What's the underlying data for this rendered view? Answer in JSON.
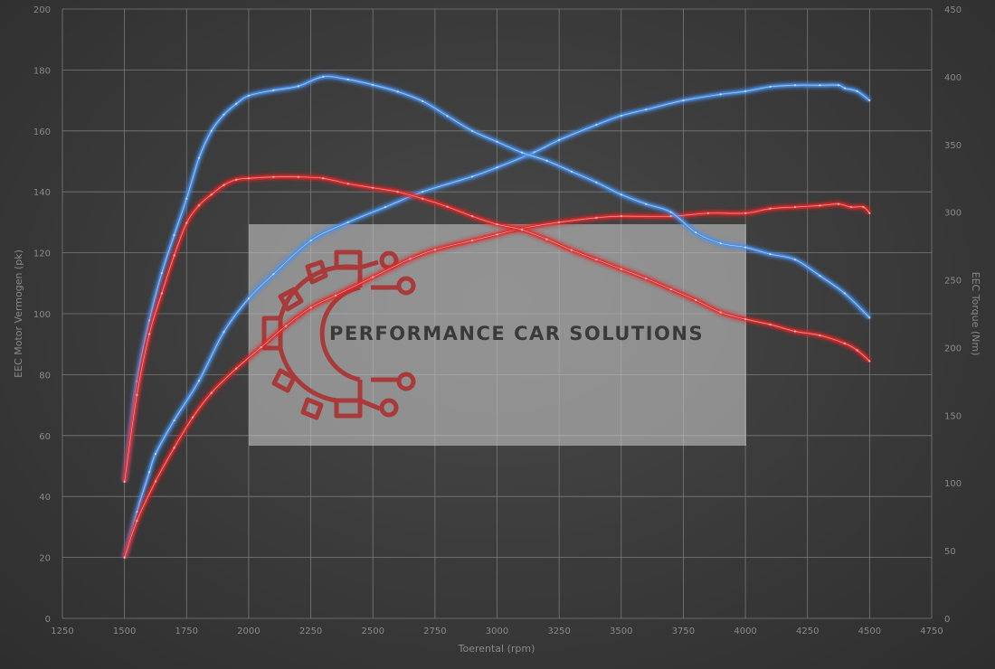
{
  "chart_data": {
    "type": "line",
    "x_axis": {
      "label": "Toerental (rpm)",
      "range": [
        1250,
        4750
      ],
      "ticks": [
        1250,
        1500,
        1750,
        2000,
        2250,
        2500,
        2750,
        3000,
        3250,
        3500,
        3750,
        4000,
        4250,
        4500,
        4750
      ]
    },
    "y_left": {
      "label": "EEC Motor Vermogen (pk)",
      "range": [
        0,
        200
      ],
      "ticks": [
        0,
        20,
        40,
        60,
        80,
        100,
        120,
        140,
        160,
        180,
        200
      ]
    },
    "y_right": {
      "label": "EEC Torque (Nm)",
      "range": [
        0,
        450
      ],
      "ticks": [
        0,
        50,
        100,
        150,
        200,
        250,
        300,
        350,
        400,
        450
      ]
    },
    "grid": true,
    "series": [
      {
        "axis": "left",
        "color": "#4a90e8",
        "points": [
          [
            1500,
            20
          ],
          [
            1550,
            35
          ],
          [
            1600,
            48
          ],
          [
            1625,
            54
          ],
          [
            1700,
            65
          ],
          [
            1800,
            78
          ],
          [
            1900,
            94
          ],
          [
            2000,
            105
          ],
          [
            2100,
            113
          ],
          [
            2250,
            124
          ],
          [
            2400,
            130
          ],
          [
            2550,
            135
          ],
          [
            2700,
            140
          ],
          [
            2900,
            145
          ],
          [
            3000,
            148
          ],
          [
            3150,
            153
          ],
          [
            3250,
            157
          ],
          [
            3400,
            162
          ],
          [
            3500,
            165
          ],
          [
            3600,
            167
          ],
          [
            3750,
            170
          ],
          [
            3900,
            172
          ],
          [
            4000,
            173
          ],
          [
            4100,
            174.5
          ],
          [
            4200,
            175
          ],
          [
            4300,
            175
          ],
          [
            4375,
            175
          ],
          [
            4400,
            174
          ],
          [
            4450,
            173
          ],
          [
            4500,
            170
          ]
        ]
      },
      {
        "axis": "left",
        "color": "#e02a2a",
        "points": [
          [
            1500,
            20
          ],
          [
            1550,
            32
          ],
          [
            1625,
            45
          ],
          [
            1700,
            56
          ],
          [
            1775,
            66
          ],
          [
            1850,
            74
          ],
          [
            1950,
            82
          ],
          [
            2050,
            89
          ],
          [
            2150,
            96
          ],
          [
            2250,
            102
          ],
          [
            2350,
            106
          ],
          [
            2500,
            112
          ],
          [
            2650,
            118
          ],
          [
            2750,
            121
          ],
          [
            2900,
            124
          ],
          [
            3000,
            126
          ],
          [
            3100,
            128
          ],
          [
            3250,
            130
          ],
          [
            3400,
            131.5
          ],
          [
            3500,
            132
          ],
          [
            3700,
            132
          ],
          [
            3850,
            133
          ],
          [
            4000,
            133
          ],
          [
            4100,
            134.5
          ],
          [
            4200,
            135
          ],
          [
            4300,
            135.5
          ],
          [
            4375,
            136
          ],
          [
            4425,
            135
          ],
          [
            4475,
            135
          ],
          [
            4500,
            133
          ]
        ]
      },
      {
        "axis": "right",
        "color": "#4a90e8",
        "points": [
          [
            1500,
            101
          ],
          [
            1550,
            175
          ],
          [
            1600,
            220
          ],
          [
            1650,
            255
          ],
          [
            1700,
            283
          ],
          [
            1750,
            310
          ],
          [
            1800,
            340
          ],
          [
            1850,
            360
          ],
          [
            1900,
            372
          ],
          [
            1950,
            380
          ],
          [
            2000,
            386
          ],
          [
            2100,
            390
          ],
          [
            2200,
            393
          ],
          [
            2300,
            400
          ],
          [
            2400,
            398
          ],
          [
            2500,
            394
          ],
          [
            2600,
            389
          ],
          [
            2700,
            382
          ],
          [
            2800,
            371
          ],
          [
            2900,
            360
          ],
          [
            3000,
            352
          ],
          [
            3100,
            344
          ],
          [
            3200,
            338
          ],
          [
            3300,
            330
          ],
          [
            3400,
            322
          ],
          [
            3500,
            313
          ],
          [
            3600,
            306
          ],
          [
            3700,
            300
          ],
          [
            3800,
            285
          ],
          [
            3900,
            277
          ],
          [
            4000,
            274
          ],
          [
            4100,
            269
          ],
          [
            4200,
            265
          ],
          [
            4300,
            253
          ],
          [
            4400,
            240
          ],
          [
            4500,
            222
          ]
        ]
      },
      {
        "axis": "right",
        "color": "#e02a2a",
        "points": [
          [
            1500,
            101
          ],
          [
            1550,
            165
          ],
          [
            1600,
            210
          ],
          [
            1650,
            240
          ],
          [
            1700,
            268
          ],
          [
            1750,
            292
          ],
          [
            1800,
            305
          ],
          [
            1850,
            313
          ],
          [
            1900,
            320
          ],
          [
            1950,
            324
          ],
          [
            2000,
            325
          ],
          [
            2100,
            326
          ],
          [
            2200,
            326
          ],
          [
            2300,
            325
          ],
          [
            2400,
            321
          ],
          [
            2500,
            318
          ],
          [
            2600,
            315
          ],
          [
            2700,
            310
          ],
          [
            2800,
            304
          ],
          [
            2900,
            297
          ],
          [
            3000,
            291
          ],
          [
            3100,
            287
          ],
          [
            3200,
            280
          ],
          [
            3300,
            272
          ],
          [
            3400,
            265
          ],
          [
            3500,
            258
          ],
          [
            3600,
            251
          ],
          [
            3700,
            243
          ],
          [
            3800,
            235
          ],
          [
            3900,
            226
          ],
          [
            4000,
            221
          ],
          [
            4100,
            217
          ],
          [
            4200,
            212
          ],
          [
            4300,
            209
          ],
          [
            4400,
            203
          ],
          [
            4450,
            198
          ],
          [
            4500,
            190
          ]
        ]
      }
    ]
  },
  "watermark": {
    "brand_text": "PERFORMANCE CAR SOLUTIONS",
    "logo_color": "#a83a3a"
  }
}
